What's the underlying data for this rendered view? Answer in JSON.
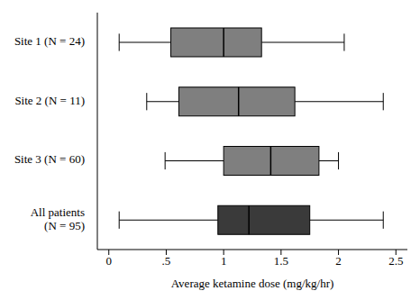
{
  "chart_data": {
    "type": "boxplot",
    "orientation": "horizontal",
    "x_label": "Average ketamine dose (mg/kg/hr)",
    "categories": [
      "Site 1 (N = 24)",
      "Site 2 (N = 11)",
      "Site 3 (N = 60)",
      "All patients (N = 95)"
    ],
    "min": [
      0.09,
      0.33,
      0.49,
      0.09
    ],
    "q1": [
      0.54,
      0.61,
      1.0,
      0.95
    ],
    "median": [
      1.0,
      1.13,
      1.41,
      1.22
    ],
    "q3": [
      1.33,
      1.62,
      1.83,
      1.75
    ],
    "max": [
      2.05,
      2.39,
      2.0,
      2.39
    ],
    "colors": [
      "#7f7f7f",
      "#7f7f7f",
      "#7f7f7f",
      "#3a3a3a"
    ],
    "xlim": [
      -0.1,
      2.6
    ],
    "xticks": [
      0,
      {
        "value": 0.5,
        "label": ".5"
      },
      1,
      1.5,
      2,
      2.5
    ]
  }
}
